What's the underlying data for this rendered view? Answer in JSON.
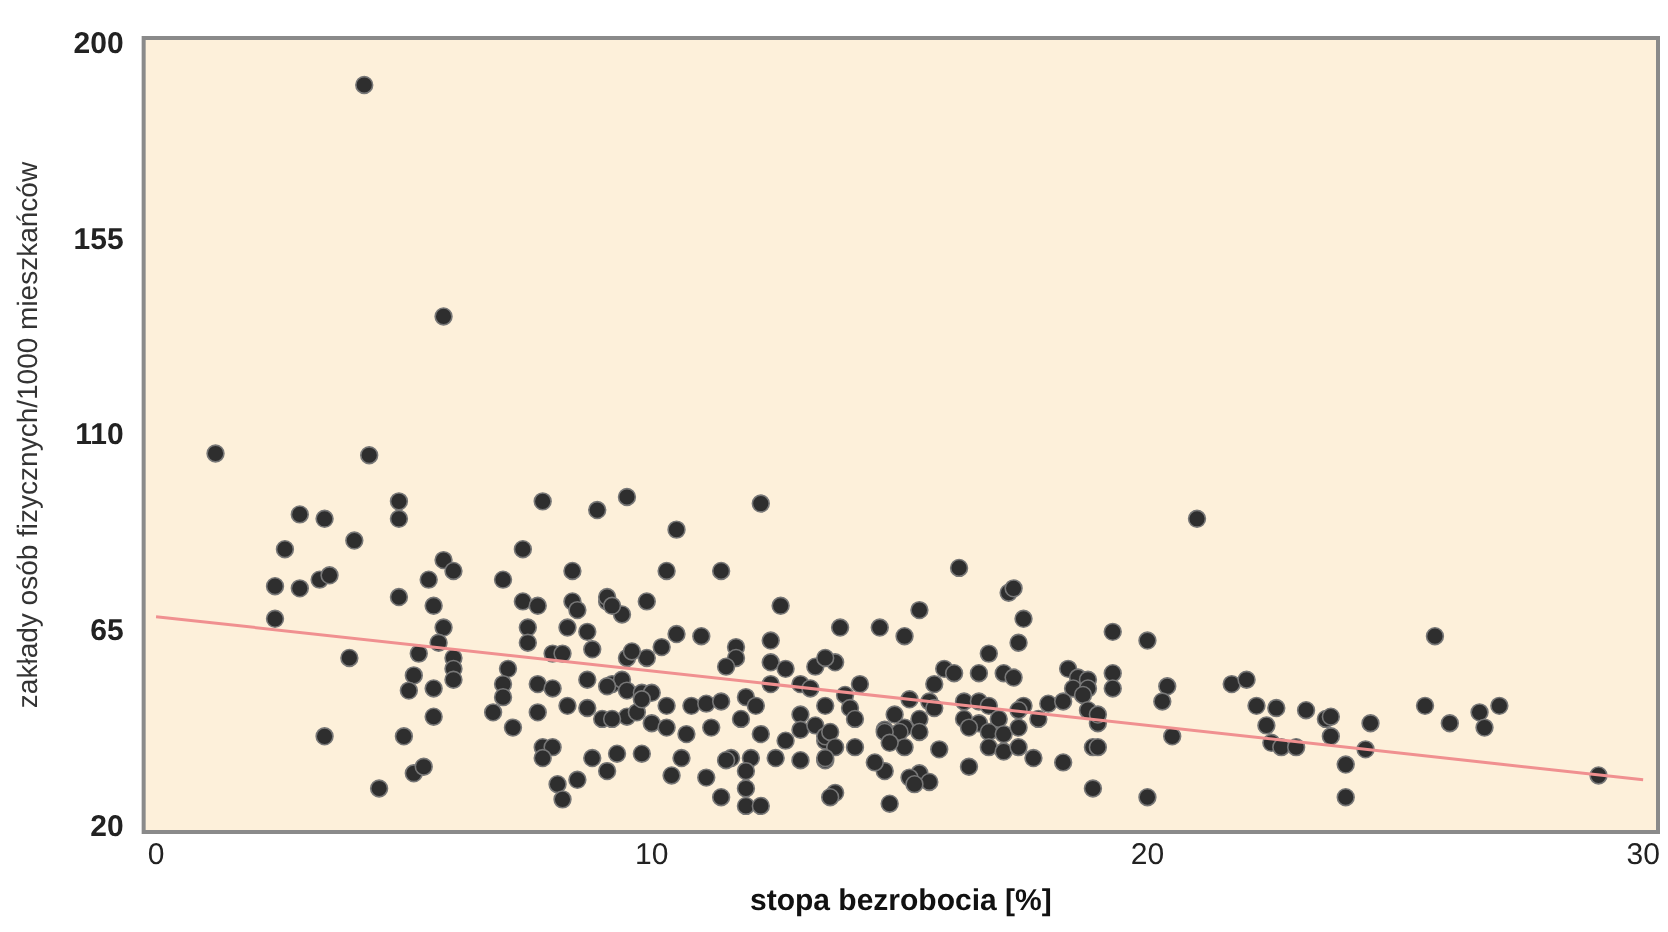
{
  "chart_data": {
    "type": "scatter",
    "xlabel": "stopa bezrobocia [%]",
    "ylabel": "zakłady osób fizycznych/1000 mieszkańców",
    "xlim": [
      -0.25,
      30.3
    ],
    "ylim": [
      19,
      201.5
    ],
    "xticks": [
      0,
      10,
      20,
      30
    ],
    "yticks": [
      20,
      65,
      110,
      155,
      200
    ],
    "grid": false,
    "legend": false,
    "series": [
      {
        "type": "scatter",
        "marker": "circle",
        "color": "#2e2e2e",
        "x": [
          4.2,
          5.8,
          1.2,
          4.3,
          4.9,
          4.9,
          2.9,
          3.4,
          2.6,
          4.0,
          2.4,
          2.9,
          3.3,
          3.5,
          2.4,
          7.8,
          8.9,
          9.5,
          7.4,
          5.8,
          6.0,
          5.5,
          4.9,
          5.6,
          7.0,
          8.4,
          7.4,
          7.7,
          8.4,
          8.5,
          9.1,
          9.4,
          9.9,
          5.8,
          5.7,
          7.5,
          7.5,
          8.3,
          8.7,
          8.8,
          3.9,
          5.3,
          6.0,
          6.0,
          6.0,
          5.2,
          5.1,
          5.6,
          7.1,
          7.0,
          7.0,
          6.8,
          7.2,
          8.0,
          8.2,
          7.7,
          8.0,
          8.7,
          7.7,
          8.3,
          8.7,
          9.5,
          9.9,
          9.2,
          9.4,
          9.5,
          9.8,
          9.5,
          9.7,
          7.8,
          8.0,
          7.8,
          8.8,
          9.1,
          9.3,
          9.8,
          8.1,
          8.2,
          8.5,
          3.4,
          5.0,
          5.6,
          5.2,
          5.4,
          4.5,
          12.2,
          10.5,
          10.3,
          11.4,
          12.6,
          9.1,
          9.2,
          10.5,
          11.0,
          12.4,
          11.7,
          11.7,
          10.2,
          9.6,
          11.5,
          12.4,
          12.7,
          13.3,
          13.7,
          9.1,
          10.0,
          10.3,
          9.8,
          10.8,
          11.1,
          11.4,
          11.9,
          12.1,
          12.4,
          13.0,
          13.2,
          13.0,
          13.5,
          9.0,
          9.2,
          10.0,
          10.3,
          10.7,
          11.2,
          11.8,
          12.2,
          12.7,
          13.0,
          13.3,
          13.5,
          10.6,
          10.4,
          11.1,
          11.6,
          12.0,
          11.5,
          11.9,
          12.5,
          13.0,
          13.5,
          11.4,
          11.9,
          11.9,
          12.2,
          13.7,
          21.0,
          16.2,
          17.2,
          17.3,
          17.5,
          15.4,
          13.8,
          14.6,
          15.1,
          17.4,
          19.3,
          20.0,
          16.8,
          13.5,
          14.2,
          13.9,
          15.9,
          16.1,
          16.6,
          15.7,
          15.6,
          17.1,
          17.3,
          18.4,
          18.6,
          18.8,
          18.5,
          18.8,
          18.7,
          19.3,
          19.3,
          20.4,
          20.3,
          15.2,
          15.7,
          16.3,
          16.6,
          16.8,
          17.5,
          18.0,
          18.3,
          14.0,
          14.1,
          14.9,
          15.4,
          15.1,
          14.7,
          15.4,
          16.3,
          16.6,
          17.0,
          17.4,
          17.8,
          19.0,
          18.8,
          19.0,
          16.4,
          16.8,
          17.1,
          17.4,
          13.5,
          13.6,
          14.1,
          13.7,
          13.5,
          14.7,
          15.0,
          14.7,
          15.1,
          15.8,
          14.8,
          14.5,
          15.4,
          16.4,
          16.8,
          17.1,
          17.4,
          17.7,
          18.3,
          18.9,
          19.0,
          20.5,
          15.2,
          15.6,
          15.3,
          13.6,
          14.8,
          18.9,
          20.0,
          21.7,
          22.0,
          22.2,
          22.6,
          22.4,
          22.5,
          22.7,
          23.0,
          23.2,
          23.6,
          23.7,
          23.7,
          24.5,
          24.4,
          24.0,
          24.0,
          25.8,
          25.6,
          26.1,
          26.7,
          26.8,
          27.1,
          29.1
        ],
        "values": [
          190.7,
          137.5,
          106,
          105.6,
          95,
          91,
          92,
          91,
          84,
          86,
          75.5,
          75,
          77,
          78,
          68,
          95,
          93,
          96,
          84,
          81.5,
          79,
          77,
          73,
          71,
          77,
          79,
          72,
          71,
          72,
          70,
          72,
          69,
          72,
          66,
          62.5,
          66,
          62.5,
          66,
          65,
          61,
          59,
          60,
          59,
          56.5,
          54,
          55,
          51.5,
          52,
          56.5,
          53,
          50,
          46.5,
          43,
          60,
          60,
          53,
          52,
          54,
          46.5,
          48,
          47.5,
          59,
          59,
          53,
          54,
          51.5,
          51,
          45.5,
          46.5,
          38.5,
          38.5,
          36,
          36,
          33,
          37,
          37,
          30,
          26.5,
          31,
          41,
          41,
          45.5,
          32.5,
          34,
          29,
          94.5,
          88.5,
          79,
          79,
          71,
          73,
          71,
          64.5,
          64,
          63,
          61.5,
          59,
          61.5,
          60.5,
          57,
          58,
          56.5,
          57,
          58,
          52.5,
          51,
          48,
          49.5,
          48,
          48.5,
          49,
          50,
          48,
          53,
          53,
          52,
          46,
          48,
          45,
          45,
          44,
          43,
          41.5,
          43,
          45,
          41.5,
          40,
          42.5,
          43.5,
          40,
          36,
          32,
          31.5,
          36,
          36,
          35.5,
          33,
          36,
          35.5,
          35.5,
          27,
          29,
          25,
          25,
          28,
          91,
          79.7,
          74,
          75,
          68,
          70,
          66,
          66,
          64,
          62.5,
          65,
          63,
          60,
          59,
          53,
          50.5,
          56.5,
          55.5,
          55.5,
          53,
          49,
          55.5,
          54.5,
          56.5,
          54.5,
          54,
          52,
          52,
          50.5,
          55.5,
          52,
          52.5,
          49,
          49.5,
          47.5,
          49,
          49,
          48,
          48,
          48.5,
          49,
          47.5,
          45,
          46,
          45,
          43,
          42.5,
          42,
          45,
          44,
          45,
          47,
          45,
          44,
          47,
          46,
          43,
          42,
          41.5,
          43,
          41,
          42,
          38.5,
          38.5,
          36,
          33,
          42,
          42,
          38.5,
          38,
          39.5,
          35,
          32.5,
          34,
          38.5,
          37.5,
          38.5,
          36,
          35,
          38.5,
          38.5,
          41,
          31.5,
          30.5,
          30,
          27,
          25.5,
          29,
          27,
          53,
          54,
          48,
          47.5,
          43.5,
          39.5,
          38.5,
          38.5,
          47,
          45,
          45.5,
          41,
          44,
          38,
          34.5,
          27,
          64,
          48,
          44,
          46.5,
          43,
          48,
          32
        ]
      },
      {
        "type": "line",
        "color": "#f09090",
        "x": [
          0,
          30
        ],
        "values": [
          68.5,
          31
        ]
      }
    ]
  }
}
